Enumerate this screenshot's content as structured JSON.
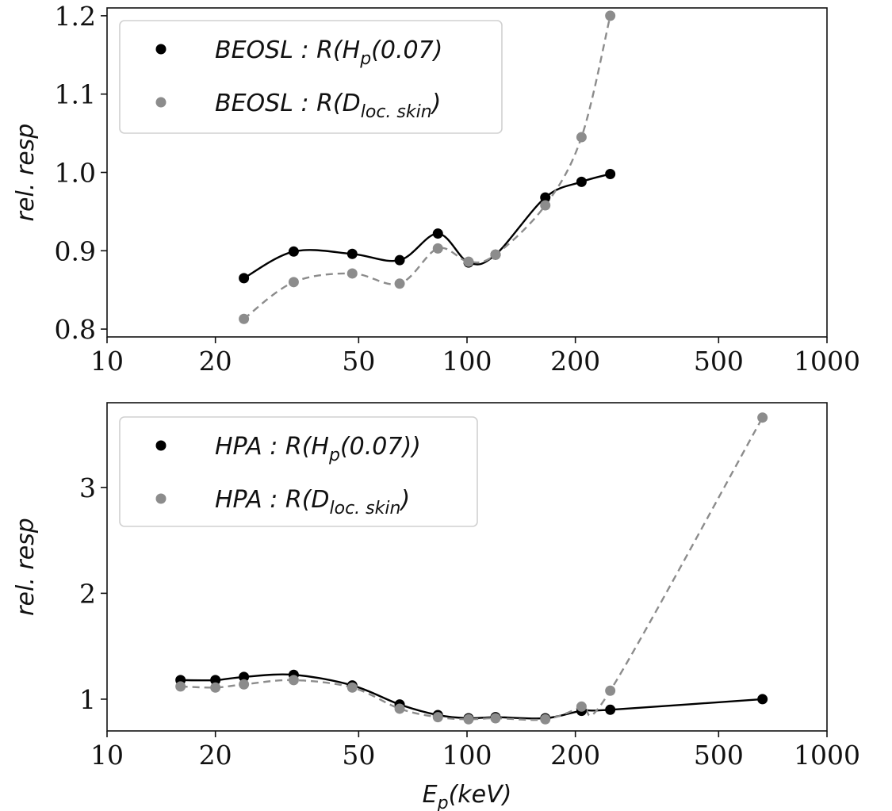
{
  "chart_data": [
    {
      "type": "line",
      "title": "",
      "xlabel": "",
      "ylabel": "rel. resp",
      "xscale": "log",
      "xlim": [
        10,
        1000
      ],
      "ylim": [
        0.79,
        1.21
      ],
      "x_ticks": [
        10,
        20,
        50,
        100,
        200,
        500,
        1000
      ],
      "x_tick_labels": [
        "10",
        "20",
        "50",
        "100",
        "200",
        "500",
        "1000"
      ],
      "y_ticks": [
        0.8,
        0.9,
        1.0,
        1.1,
        1.2
      ],
      "y_tick_labels": [
        "0.8",
        "0.9",
        "1.0",
        "1.1",
        "1.2"
      ],
      "grid": false,
      "legend_position": "top-left",
      "series": [
        {
          "legend_main": "BEOSL : R(H",
          "legend_sub": "p",
          "legend_tail": "(0.07)",
          "color": "#000000",
          "line_style": "solid",
          "x": [
            24,
            33,
            48,
            65,
            83,
            101,
            120,
            165,
            208,
            250
          ],
          "y": [
            0.865,
            0.899,
            0.896,
            0.888,
            0.922,
            0.885,
            0.895,
            0.968,
            0.988,
            0.998
          ]
        },
        {
          "legend_main": "BEOSL : R(D",
          "legend_sub": "loc. skin",
          "legend_tail": ")",
          "color": "#8c8c8c",
          "line_style": "dashed",
          "x": [
            24,
            33,
            48,
            65,
            83,
            101,
            120,
            165,
            208,
            250
          ],
          "y": [
            0.813,
            0.86,
            0.871,
            0.858,
            0.903,
            0.886,
            0.895,
            0.958,
            1.045,
            1.2
          ]
        }
      ]
    },
    {
      "type": "line",
      "title": "",
      "xlabel": "E",
      "xlabel_sub": "p",
      "xlabel_tail": "(keV)",
      "ylabel": "rel. resp",
      "xscale": "log",
      "xlim": [
        10,
        1000
      ],
      "ylim": [
        0.7,
        3.8
      ],
      "x_ticks": [
        10,
        20,
        50,
        100,
        200,
        500,
        1000
      ],
      "x_tick_labels": [
        "10",
        "20",
        "50",
        "100",
        "200",
        "500",
        "1000"
      ],
      "y_ticks": [
        1,
        2,
        3
      ],
      "y_tick_labels": [
        "1",
        "2",
        "3"
      ],
      "grid": false,
      "legend_position": "top-left",
      "series": [
        {
          "legend_main": "HPA : R(H",
          "legend_sub": "p",
          "legend_tail": "(0.07))",
          "color": "#000000",
          "line_style": "solid",
          "x": [
            16,
            20,
            24,
            33,
            48,
            65,
            83,
            101,
            120,
            165,
            208,
            250,
            662
          ],
          "y": [
            1.18,
            1.18,
            1.21,
            1.23,
            1.13,
            0.95,
            0.85,
            0.82,
            0.83,
            0.82,
            0.89,
            0.9,
            1.0
          ]
        },
        {
          "legend_main": "HPA : R(D",
          "legend_sub": "loc. skin",
          "legend_tail": ")",
          "color": "#8c8c8c",
          "line_style": "dashed",
          "x": [
            16,
            20,
            24,
            33,
            48,
            65,
            83,
            101,
            120,
            165,
            208,
            250,
            662
          ],
          "y": [
            1.12,
            1.11,
            1.14,
            1.18,
            1.11,
            0.91,
            0.83,
            0.81,
            0.82,
            0.81,
            0.93,
            1.08,
            3.66
          ]
        }
      ]
    }
  ]
}
